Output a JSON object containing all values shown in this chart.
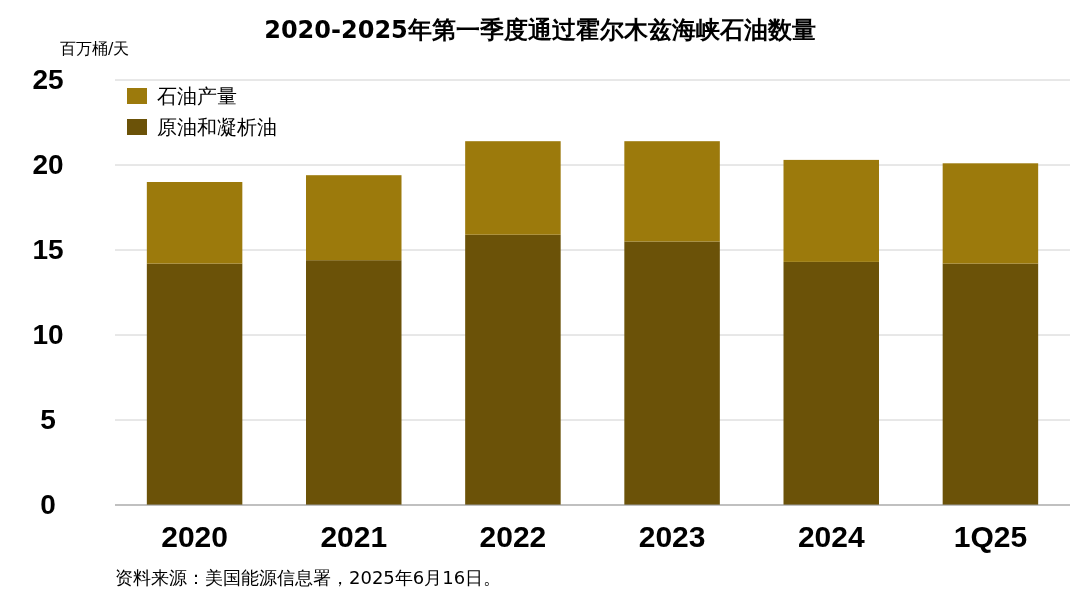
{
  "chart_data": {
    "type": "bar",
    "title": "2020-2025年第一季度通过霍尔木兹海峡石油数量",
    "ylabel": "百万桶/天",
    "categories": [
      "2020",
      "2021",
      "2022",
      "2023",
      "2024",
      "1Q25"
    ],
    "stacked": true,
    "series": [
      {
        "name": "原油和凝析油",
        "color": "#6b5208",
        "values": [
          14.2,
          14.4,
          15.9,
          15.5,
          14.3,
          14.2
        ]
      },
      {
        "name": "石油产量",
        "color": "#9c7a0c",
        "values": [
          4.8,
          5.0,
          5.5,
          5.9,
          6.0,
          5.9
        ]
      }
    ],
    "ylim": [
      0,
      25
    ],
    "yticks": [
      0,
      5,
      10,
      15,
      20,
      25
    ],
    "grid": "y",
    "legend": "top left",
    "annotations": [
      "资料来源：美国能源信息署，2025年6月16日。"
    ]
  }
}
